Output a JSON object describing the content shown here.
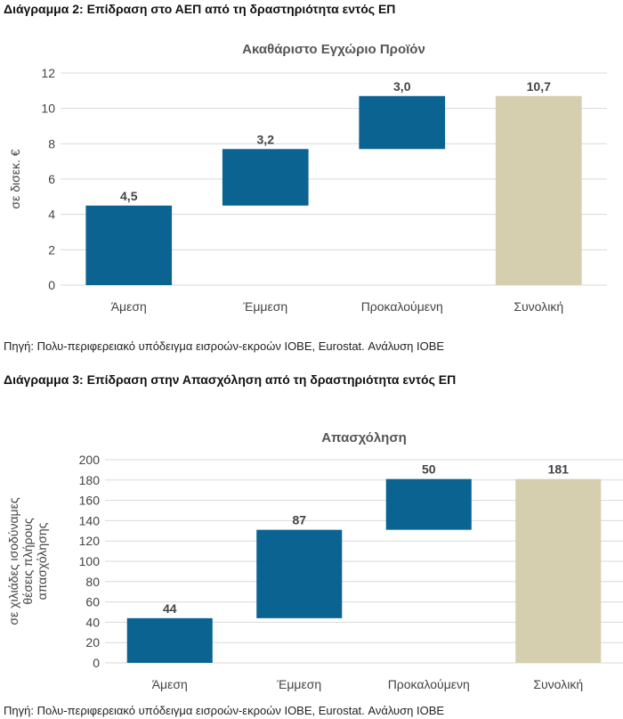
{
  "caption1": "Διάγραμμα 2: Επίδραση στο ΑΕΠ από τη δραστηριότητα εντός ΕΠ",
  "source1": "Πηγή: Πολυ-περιφερειακό υπόδειγμα εισροών-εκροών ΙΟΒΕ, Eurostat. Ανάλυση ΙΟΒΕ",
  "caption2": "Διάγραμμα 3: Επίδραση στην Απασχόληση από τη δραστηριότητα εντός ΕΠ",
  "source2": "Πηγή: Πολυ-περιφερειακό υπόδειγμα εισροών-εκροών ΙΟΒΕ, Eurostat. Ανάλυση ΙΟΒΕ",
  "colors": {
    "bar": "#0a6391",
    "total": "#d5cfb0",
    "grid": "#d9d9d9"
  },
  "chart_data": [
    {
      "type": "bar",
      "subtype": "waterfall",
      "title": "Ακαθάριστο Εγχώριο Προϊόν",
      "ylabel": "σε δισεκ. €",
      "categories": [
        "Άμεση",
        "Έμμεση",
        "Προκαλούμενη",
        "Συνολική"
      ],
      "values": [
        4.5,
        3.2,
        3.0,
        10.7
      ],
      "value_labels": [
        "4,5",
        "3,2",
        "3,0",
        "10,7"
      ],
      "total_index": 3,
      "ylim": [
        0,
        12
      ],
      "yticks": [
        0,
        2,
        4,
        6,
        8,
        10,
        12
      ],
      "grid": true,
      "legend": "none"
    },
    {
      "type": "bar",
      "subtype": "waterfall",
      "title": "Απασχόληση",
      "ylabel_lines": [
        "σε χιλιάδες ισοδύναμες",
        "θέσεις πλήρους",
        "απασχόλησης"
      ],
      "categories": [
        "Άμεση",
        "Έμμεση",
        "Προκαλούμενη",
        "Συνολική"
      ],
      "values": [
        44,
        87,
        50,
        181
      ],
      "value_labels": [
        "44",
        "87",
        "50",
        "181"
      ],
      "total_index": 3,
      "ylim": [
        0,
        200
      ],
      "yticks": [
        0,
        20,
        40,
        60,
        80,
        100,
        120,
        140,
        160,
        180,
        200
      ],
      "grid": true,
      "legend": "none"
    }
  ]
}
